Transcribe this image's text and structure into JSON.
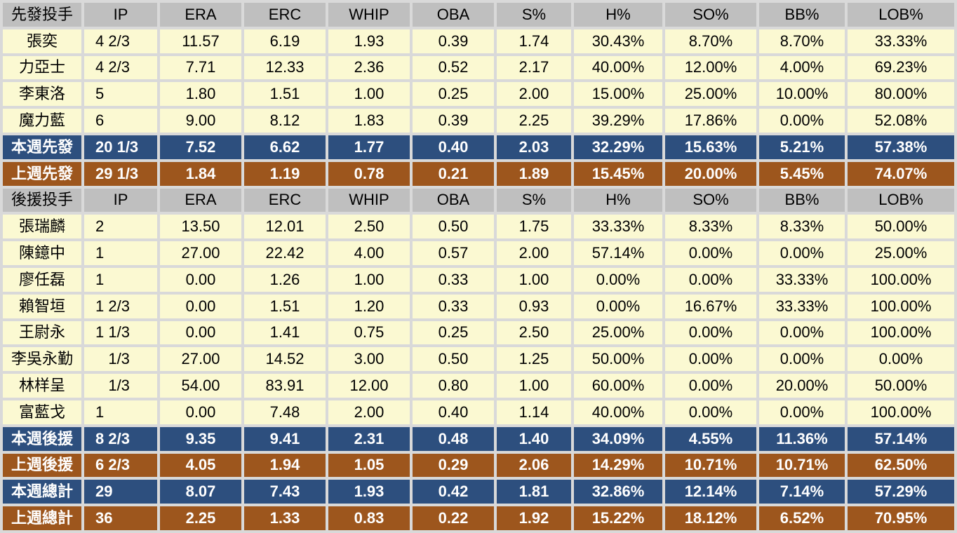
{
  "colors": {
    "header_bg": "#bfbfbf",
    "player_row_bg": "#fbf9d2",
    "current_week_row_bg": "#2d4f7e",
    "previous_week_row_bg": "#9d561d",
    "grid_gap": "#d9d9d9",
    "summary_text": "#ffffff",
    "body_text": "#000000"
  },
  "chart_data": {
    "type": "table",
    "columns": [
      "IP",
      "ERA",
      "ERC",
      "WHIP",
      "OBA",
      "S%",
      "H%",
      "SO%",
      "BB%",
      "LOB%"
    ],
    "sections": [
      {
        "header_label": "先發投手",
        "rows": [
          {
            "name": "張奕",
            "type": "player",
            "values": [
              "4 2/3",
              "11.57",
              "6.19",
              "1.93",
              "0.39",
              "1.74",
              "30.43%",
              "8.70%",
              "8.70%",
              "33.33%"
            ]
          },
          {
            "name": "力亞士",
            "type": "player",
            "values": [
              "4 2/3",
              "7.71",
              "12.33",
              "2.36",
              "0.52",
              "2.17",
              "40.00%",
              "12.00%",
              "4.00%",
              "69.23%"
            ]
          },
          {
            "name": "李東洛",
            "type": "player",
            "values": [
              "5",
              "1.80",
              "1.51",
              "1.00",
              "0.25",
              "2.00",
              "15.00%",
              "25.00%",
              "10.00%",
              "80.00%"
            ]
          },
          {
            "name": "魔力藍",
            "type": "player",
            "values": [
              "6",
              "9.00",
              "8.12",
              "1.83",
              "0.39",
              "2.25",
              "39.29%",
              "17.86%",
              "0.00%",
              "52.08%"
            ]
          },
          {
            "name": "本週先發",
            "type": "week-current",
            "values": [
              "20 1/3",
              "7.52",
              "6.62",
              "1.77",
              "0.40",
              "2.03",
              "32.29%",
              "15.63%",
              "5.21%",
              "57.38%"
            ]
          },
          {
            "name": "上週先發",
            "type": "week-prev",
            "values": [
              "29 1/3",
              "1.84",
              "1.19",
              "0.78",
              "0.21",
              "1.89",
              "15.45%",
              "20.00%",
              "5.45%",
              "74.07%"
            ]
          }
        ]
      },
      {
        "header_label": "後援投手",
        "rows": [
          {
            "name": "張瑞麟",
            "type": "player",
            "values": [
              "2",
              "13.50",
              "12.01",
              "2.50",
              "0.50",
              "1.75",
              "33.33%",
              "8.33%",
              "8.33%",
              "50.00%"
            ]
          },
          {
            "name": "陳鐿中",
            "type": "player",
            "values": [
              "1",
              "27.00",
              "22.42",
              "4.00",
              "0.57",
              "2.00",
              "57.14%",
              "0.00%",
              "0.00%",
              "25.00%"
            ]
          },
          {
            "name": "廖任磊",
            "type": "player",
            "values": [
              "1",
              "0.00",
              "1.26",
              "1.00",
              "0.33",
              "1.00",
              "0.00%",
              "0.00%",
              "33.33%",
              "100.00%"
            ]
          },
          {
            "name": "賴智垣",
            "type": "player",
            "values": [
              "1 2/3",
              "0.00",
              "1.51",
              "1.20",
              "0.33",
              "0.93",
              "0.00%",
              "16.67%",
              "33.33%",
              "100.00%"
            ]
          },
          {
            "name": "王尉永",
            "type": "player",
            "values": [
              "1 1/3",
              "0.00",
              "1.41",
              "0.75",
              "0.25",
              "2.50",
              "25.00%",
              "0.00%",
              "0.00%",
              "100.00%"
            ]
          },
          {
            "name": "李吳永勤",
            "type": "player",
            "values": [
              "   1/3",
              "27.00",
              "14.52",
              "3.00",
              "0.50",
              "1.25",
              "50.00%",
              "0.00%",
              "0.00%",
              "0.00%"
            ]
          },
          {
            "name": "林样呈",
            "type": "player",
            "values": [
              "   1/3",
              "54.00",
              "83.91",
              "12.00",
              "0.80",
              "1.00",
              "60.00%",
              "0.00%",
              "20.00%",
              "50.00%"
            ]
          },
          {
            "name": "富藍戈",
            "type": "player",
            "values": [
              "1",
              "0.00",
              "7.48",
              "2.00",
              "0.40",
              "1.14",
              "40.00%",
              "0.00%",
              "0.00%",
              "100.00%"
            ]
          },
          {
            "name": "本週後援",
            "type": "week-current",
            "values": [
              "8 2/3",
              "9.35",
              "9.41",
              "2.31",
              "0.48",
              "1.40",
              "34.09%",
              "4.55%",
              "11.36%",
              "57.14%"
            ]
          },
          {
            "name": "上週後援",
            "type": "week-prev",
            "values": [
              "6 2/3",
              "4.05",
              "1.94",
              "1.05",
              "0.29",
              "2.06",
              "14.29%",
              "10.71%",
              "10.71%",
              "62.50%"
            ]
          },
          {
            "name": "本週總計",
            "type": "week-current",
            "values": [
              "29",
              "8.07",
              "7.43",
              "1.93",
              "0.42",
              "1.81",
              "32.86%",
              "12.14%",
              "7.14%",
              "57.29%"
            ]
          },
          {
            "name": "上週總計",
            "type": "week-prev",
            "values": [
              "36",
              "2.25",
              "1.33",
              "0.83",
              "0.22",
              "1.92",
              "15.22%",
              "18.12%",
              "6.52%",
              "70.95%"
            ]
          }
        ]
      }
    ]
  }
}
